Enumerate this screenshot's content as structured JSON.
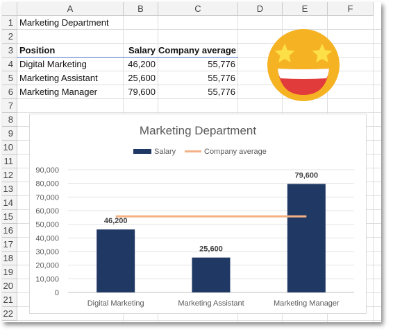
{
  "columns": [
    "A",
    "B",
    "C",
    "D",
    "E",
    "F"
  ],
  "rows": [
    "1",
    "2",
    "3",
    "4",
    "5",
    "6",
    "7",
    "8",
    "9",
    "10",
    "11",
    "12",
    "13",
    "14",
    "15",
    "16",
    "17",
    "18",
    "19",
    "20",
    "21",
    "22"
  ],
  "sheet": {
    "title": "Marketing Department",
    "headers": {
      "position": "Position",
      "salary": "Salary",
      "company_average": "Company average"
    },
    "table": [
      {
        "position": "Digital Marketing",
        "salary": "46,200",
        "company_average": "55,776"
      },
      {
        "position": "Marketing Assistant",
        "salary": "25,600",
        "company_average": "55,776"
      },
      {
        "position": "Marketing Manager",
        "salary": "79,600",
        "company_average": "55,776"
      }
    ]
  },
  "emoji": {
    "icon": "star-struck-emoji-icon",
    "face_color": "#f5b324",
    "star_color": "#fde047",
    "mouth_color": "#e23b3b"
  },
  "chart_data": {
    "type": "bar",
    "title": "Marketing Department",
    "categories": [
      "Digital Marketing",
      "Marketing Assistant",
      "Marketing Manager"
    ],
    "series": [
      {
        "name": "Salary",
        "type": "bar",
        "values": [
          46200,
          25600,
          79600
        ],
        "color": "#203864",
        "labels": [
          "46,200",
          "25,600",
          "79,600"
        ]
      },
      {
        "name": "Company average",
        "type": "line",
        "values": [
          55776,
          55776,
          55776
        ],
        "color": "#f4b183"
      }
    ],
    "ylim": [
      0,
      90000
    ],
    "yticks": [
      "0",
      "10,000",
      "20,000",
      "30,000",
      "40,000",
      "50,000",
      "60,000",
      "70,000",
      "80,000",
      "90,000"
    ],
    "ytick_values": [
      0,
      10000,
      20000,
      30000,
      40000,
      50000,
      60000,
      70000,
      80000,
      90000
    ],
    "grid": true,
    "legend": "top"
  }
}
